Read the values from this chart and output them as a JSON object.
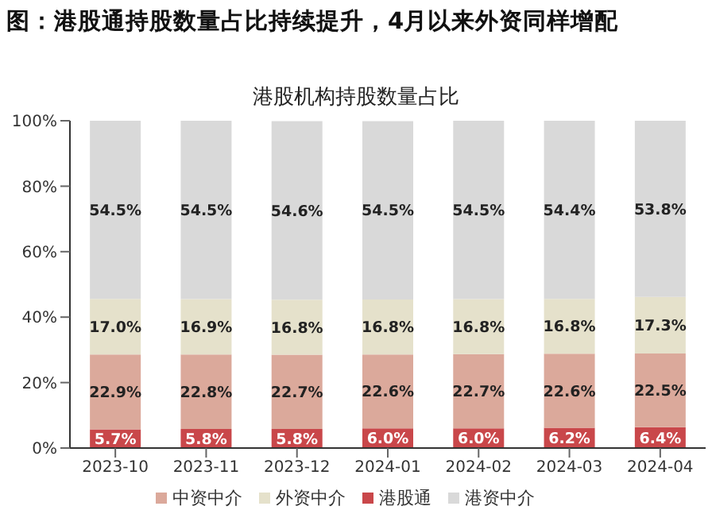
{
  "chart_data": {
    "type": "bar",
    "title": "图：港股通持股数量占比持续提升，4月以来外资同样增配",
    "subtitle": "港股机构持股数量占比",
    "stacked": true,
    "categories": [
      "2023-10",
      "2023-11",
      "2023-12",
      "2024-01",
      "2024-02",
      "2024-03",
      "2024-04"
    ],
    "series": [
      {
        "name": "港股通",
        "color": "#c9474a",
        "values": [
          5.7,
          5.8,
          5.8,
          6.0,
          6.0,
          6.2,
          6.4
        ],
        "value_labels": [
          "5.7%",
          "5.8%",
          "5.8%",
          "6.0%",
          "6.0%",
          "6.2%",
          "6.4%"
        ]
      },
      {
        "name": "中资中介",
        "color": "#dba99b",
        "values": [
          22.9,
          22.8,
          22.7,
          22.6,
          22.7,
          22.6,
          22.5
        ],
        "value_labels": [
          "22.9%",
          "22.8%",
          "22.7%",
          "22.6%",
          "22.7%",
          "22.6%",
          "22.5%"
        ]
      },
      {
        "name": "外资中介",
        "color": "#e5e1cb",
        "values": [
          17.0,
          16.9,
          16.8,
          16.8,
          16.8,
          16.8,
          17.3
        ],
        "value_labels": [
          "17.0%",
          "16.9%",
          "16.8%",
          "16.8%",
          "16.8%",
          "16.8%",
          "17.3%"
        ]
      },
      {
        "name": "港资中介",
        "color": "#d9d9d9",
        "values": [
          54.5,
          54.5,
          54.6,
          54.5,
          54.5,
          54.4,
          53.8
        ],
        "value_labels": [
          "54.5%",
          "54.5%",
          "54.6%",
          "54.5%",
          "54.5%",
          "54.4%",
          "53.8%"
        ]
      }
    ],
    "ylim": [
      0,
      100
    ],
    "yticks": [
      {
        "value": 0,
        "label": "0%"
      },
      {
        "value": 20,
        "label": "20%"
      },
      {
        "value": 40,
        "label": "40%"
      },
      {
        "value": 60,
        "label": "60%"
      },
      {
        "value": 80,
        "label": "80%"
      },
      {
        "value": 100,
        "label": "100%"
      }
    ],
    "legend": "bottom"
  }
}
